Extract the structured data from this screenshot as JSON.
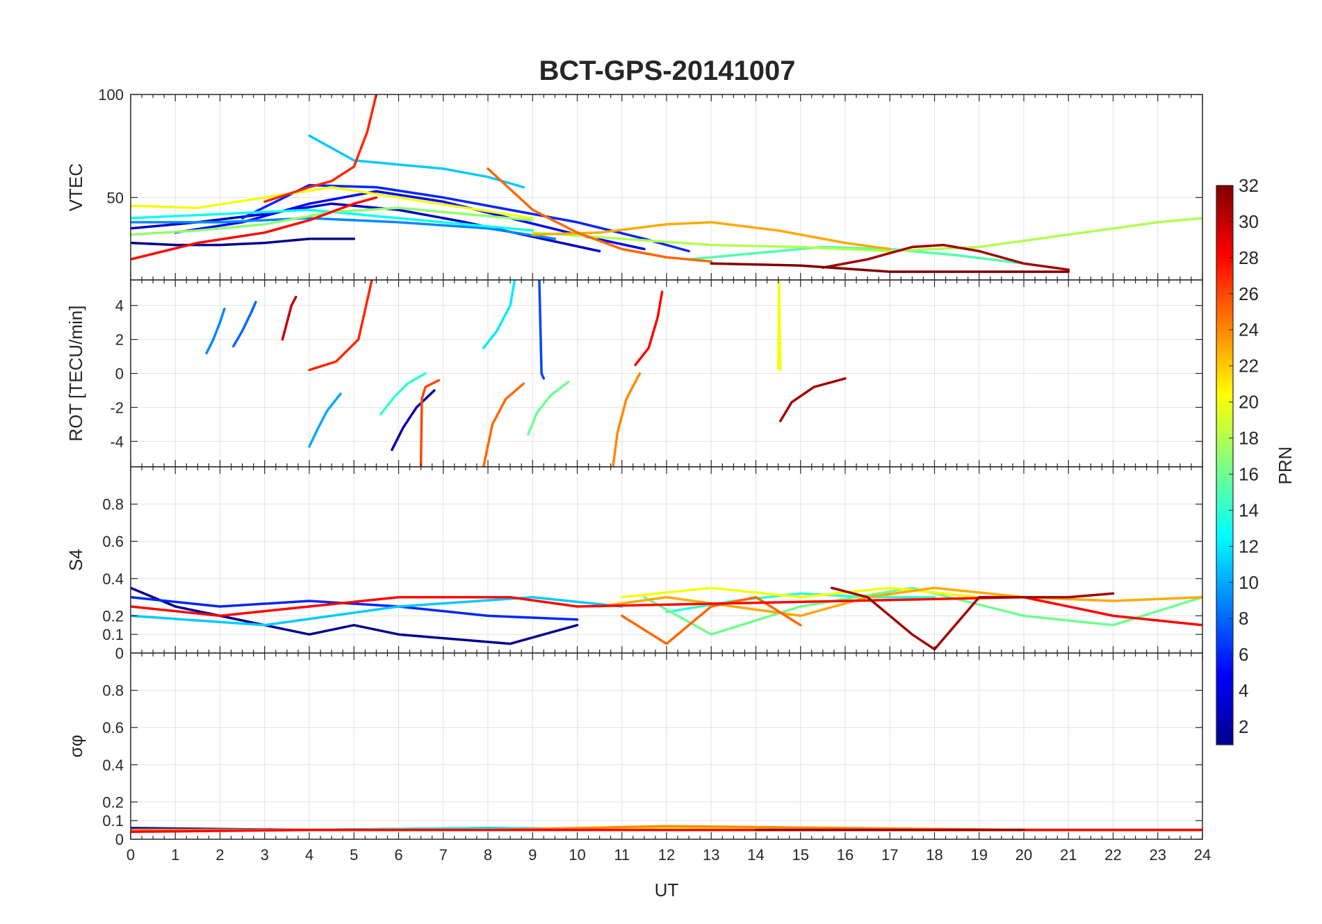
{
  "chart_data": {
    "title": "BCT-GPS-20141007",
    "type": "line",
    "shared_x": {
      "label": "UT",
      "range": [
        0,
        24
      ],
      "ticks": [
        0,
        1,
        2,
        3,
        4,
        5,
        6,
        7,
        8,
        9,
        10,
        11,
        12,
        13,
        14,
        15,
        16,
        17,
        18,
        19,
        20,
        21,
        22,
        23,
        24
      ]
    },
    "grid": true,
    "colorbar": {
      "label": "PRN",
      "range": [
        1,
        32
      ],
      "ticks": [
        2,
        4,
        6,
        8,
        10,
        12,
        14,
        16,
        18,
        20,
        22,
        24,
        26,
        28,
        30,
        32
      ],
      "colormap": [
        "#00008f",
        "#0000ff",
        "#0080ff",
        "#00ffff",
        "#80ff80",
        "#ffff00",
        "#ff8000",
        "#ff0000",
        "#800000"
      ],
      "placement": "right"
    },
    "panels": [
      {
        "id": "vtec",
        "ylabel": "VTEC",
        "ylim": [
          10,
          100
        ],
        "yticks": [
          50,
          100
        ],
        "series": [
          {
            "prn": 1,
            "x": [
              0.0,
              1.0,
              2.0,
              3.0,
              4.0,
              5.0
            ],
            "y": [
              28,
              27,
              27,
              28,
              30,
              30
            ]
          },
          {
            "prn": 3,
            "x": [
              0.0,
              1.5,
              3.0,
              4.5,
              6.0,
              7.5,
              9.0,
              10.5
            ],
            "y": [
              35,
              38,
              42,
              47,
              44,
              38,
              31,
              24
            ]
          },
          {
            "prn": 5,
            "x": [
              1.0,
              2.5,
              4.0,
              5.5,
              7.0,
              8.5,
              10.0,
              11.5
            ],
            "y": [
              33,
              38,
              47,
              53,
              48,
              40,
              32,
              25
            ]
          },
          {
            "prn": 6,
            "x": [
              2.5,
              4.0,
              5.5,
              7.0,
              8.5,
              10.0,
              11.5,
              12.5
            ],
            "y": [
              40,
              56,
              55,
              50,
              44,
              38,
              30,
              24
            ]
          },
          {
            "prn": 9,
            "x": [
              0.0,
              2.0,
              4.0,
              6.0,
              8.0,
              9.5
            ],
            "y": [
              38,
              38,
              40,
              38,
              35,
              30
            ]
          },
          {
            "prn": 11,
            "x": [
              4.0,
              5.0,
              6.0,
              7.0,
              8.0,
              8.8
            ],
            "y": [
              80,
              68,
              66,
              64,
              60,
              55
            ]
          },
          {
            "prn": 13,
            "x": [
              0.0,
              2.0,
              4.0,
              6.0,
              8.0,
              9.0
            ],
            "y": [
              40,
              42,
              44,
              40,
              36,
              34
            ]
          },
          {
            "prn": 15,
            "x": [
              12.5,
              14.0,
              15.5,
              17.0,
              18.5,
              20.0
            ],
            "y": [
              20,
              23,
              26,
              25,
              22,
              18
            ]
          },
          {
            "prn": 17,
            "x": [
              0.0,
              1.5,
              3.0,
              4.5,
              6.0,
              7.5,
              9.0
            ],
            "y": [
              32,
              34,
              37,
              43,
              45,
              42,
              39
            ]
          },
          {
            "prn": 18,
            "x": [
              9.0,
              11.0,
              13.0,
              15.0,
              17.0,
              19.0,
              21.0,
              23.0,
              24.0
            ],
            "y": [
              33,
              30,
              27,
              26,
              24,
              26,
              32,
              38,
              40
            ]
          },
          {
            "prn": 20,
            "x": [
              0.0,
              1.5,
              3.0,
              4.5,
              6.0,
              7.5,
              9.0
            ],
            "y": [
              46,
              45,
              50,
              55,
              50,
              45,
              40
            ]
          },
          {
            "prn": 23,
            "x": [
              9.0,
              10.5,
              12.0,
              13.0,
              14.5,
              16.0,
              17.0
            ],
            "y": [
              32,
              33,
              37,
              38,
              34,
              28,
              25
            ]
          },
          {
            "prn": 25,
            "x": [
              8.0,
              9.0,
              10.0,
              11.0,
              12.0,
              13.0
            ],
            "y": [
              64,
              44,
              33,
              25,
              21,
              19
            ]
          },
          {
            "prn": 27,
            "x": [
              3.0,
              4.0,
              4.5,
              5.0,
              5.3,
              5.5
            ],
            "y": [
              48,
              55,
              58,
              65,
              82,
              100
            ]
          },
          {
            "prn": 28,
            "x": [
              0.0,
              1.5,
              3.0,
              4.0,
              5.0,
              5.5
            ],
            "y": [
              20,
              28,
              33,
              39,
              47,
              50
            ]
          },
          {
            "prn": 31,
            "x": [
              15.5,
              16.5,
              17.5,
              18.2,
              19.0,
              20.0,
              21.0
            ],
            "y": [
              16,
              20,
              26,
              27,
              24,
              18,
              15
            ]
          },
          {
            "prn": 32,
            "x": [
              13.0,
              15.0,
              17.0,
              19.0,
              21.0
            ],
            "y": [
              18,
              17,
              14,
              14,
              14
            ]
          }
        ]
      },
      {
        "id": "rot",
        "ylabel": "ROT [TECU/min]",
        "ylim": [
          -5.5,
          5.5
        ],
        "yticks": [
          -4,
          -2,
          0,
          2,
          4
        ],
        "series": [
          {
            "prn": 2,
            "x": [
              5.85,
              6.1,
              6.4,
              6.8
            ],
            "y": [
              -4.5,
              -3.2,
              -2.0,
              -1.0
            ]
          },
          {
            "prn": 7,
            "x": [
              9.15,
              9.2,
              9.25
            ],
            "y": [
              5.5,
              0,
              -0.3
            ]
          },
          {
            "prn": 8,
            "x": [
              2.3,
              2.5,
              2.7,
              2.8
            ],
            "y": [
              1.6,
              2.5,
              3.6,
              4.2
            ]
          },
          {
            "prn": 9,
            "x": [
              1.7,
              1.85,
              2.0,
              2.1
            ],
            "y": [
              1.2,
              2.0,
              3.0,
              3.8
            ]
          },
          {
            "prn": 10,
            "x": [
              4.0,
              4.2,
              4.4,
              4.7
            ],
            "y": [
              -4.3,
              -3.2,
              -2.2,
              -1.2
            ]
          },
          {
            "prn": 12,
            "x": [
              7.9,
              8.2,
              8.5,
              8.6
            ],
            "y": [
              1.5,
              2.5,
              4.0,
              5.5
            ]
          },
          {
            "prn": 14,
            "x": [
              5.6,
              5.9,
              6.2,
              6.6
            ],
            "y": [
              -2.4,
              -1.4,
              -0.6,
              0
            ]
          },
          {
            "prn": 16,
            "x": [
              8.9,
              9.1,
              9.4,
              9.8
            ],
            "y": [
              -3.6,
              -2.3,
              -1.3,
              -0.5
            ]
          },
          {
            "prn": 20,
            "x": [
              14.5,
              14.52,
              14.55
            ],
            "y": [
              0.3,
              5.5,
              0.2
            ]
          },
          {
            "prn": 24,
            "x": [
              10.8,
              10.9,
              11.1,
              11.4
            ],
            "y": [
              -5.5,
              -3.5,
              -1.5,
              0
            ]
          },
          {
            "prn": 25,
            "x": [
              7.9,
              8.1,
              8.4,
              8.8
            ],
            "y": [
              -5.5,
              -3.0,
              -1.5,
              -0.6
            ]
          },
          {
            "prn": 26,
            "x": [
              6.5,
              6.52,
              6.6,
              6.9
            ],
            "y": [
              -5.5,
              -1.5,
              -0.8,
              -0.4
            ]
          },
          {
            "prn": 27,
            "x": [
              4.0,
              4.6,
              5.1,
              5.4
            ],
            "y": [
              0.2,
              0.7,
              2.0,
              5.5
            ]
          },
          {
            "prn": 28,
            "x": [
              11.3,
              11.6,
              11.8,
              11.9
            ],
            "y": [
              0.5,
              1.5,
              3.3,
              4.8
            ]
          },
          {
            "prn": 30,
            "x": [
              3.4,
              3.5,
              3.6,
              3.7
            ],
            "y": [
              2.0,
              3.0,
              4.0,
              4.5
            ]
          },
          {
            "prn": 31,
            "x": [
              14.55,
              14.8,
              15.3,
              16.0
            ],
            "y": [
              -2.8,
              -1.7,
              -0.8,
              -0.3
            ]
          }
        ]
      },
      {
        "id": "s4",
        "ylabel": "S4",
        "ylim": [
          0,
          1
        ],
        "yticks": [
          0,
          0.1,
          0.2,
          0.4,
          0.6,
          0.8
        ],
        "series": [
          {
            "prn": 1,
            "x": [
              0.0,
              1.0,
              2.0,
              4.0,
              5.0,
              6.0,
              7.0,
              8.5,
              10.0
            ],
            "y": [
              0.35,
              0.25,
              0.2,
              0.1,
              0.15,
              0.1,
              0.08,
              0.05,
              0.15
            ]
          },
          {
            "prn": 6,
            "x": [
              0.0,
              2.0,
              4.0,
              6.0,
              8.0,
              10.0
            ],
            "y": [
              0.3,
              0.25,
              0.28,
              0.25,
              0.2,
              0.18
            ]
          },
          {
            "prn": 11,
            "x": [
              0.0,
              3.0,
              6.0,
              9.0,
              11.0
            ],
            "y": [
              0.2,
              0.15,
              0.25,
              0.3,
              0.25
            ]
          },
          {
            "prn": 14,
            "x": [
              12.0,
              13.5,
              15.0,
              16.5,
              18.0
            ],
            "y": [
              0.22,
              0.28,
              0.32,
              0.3,
              0.3
            ]
          },
          {
            "prn": 16,
            "x": [
              11.5,
              13.0,
              15.0,
              17.5,
              20.0,
              22.0,
              24.0
            ],
            "y": [
              0.3,
              0.1,
              0.25,
              0.35,
              0.2,
              0.15,
              0.3
            ]
          },
          {
            "prn": 20,
            "x": [
              11.0,
              13.0,
              15.0,
              17.0,
              19.0
            ],
            "y": [
              0.3,
              0.35,
              0.3,
              0.35,
              0.3
            ]
          },
          {
            "prn": 23,
            "x": [
              10.5,
              12.0,
              13.5,
              15.0,
              16.5,
              18.0,
              20.0,
              22.0,
              24.0
            ],
            "y": [
              0.25,
              0.3,
              0.25,
              0.2,
              0.3,
              0.35,
              0.3,
              0.28,
              0.3
            ]
          },
          {
            "prn": 25,
            "x": [
              11.0,
              12.0,
              13.0,
              14.0,
              15.0
            ],
            "y": [
              0.2,
              0.05,
              0.25,
              0.3,
              0.15
            ]
          },
          {
            "prn": 28,
            "x": [
              0.0,
              2.0,
              4.0,
              6.0,
              8.5,
              10.0,
              20.0,
              22.0,
              24.0
            ],
            "y": [
              0.25,
              0.2,
              0.25,
              0.3,
              0.3,
              0.25,
              0.3,
              0.2,
              0.15
            ]
          },
          {
            "prn": 31,
            "x": [
              15.7,
              16.5,
              17.5,
              18.0,
              19.0,
              21.0,
              22.0
            ],
            "y": [
              0.35,
              0.3,
              0.1,
              0.02,
              0.3,
              0.3,
              0.32
            ]
          }
        ]
      },
      {
        "id": "sigma_phi",
        "ylabel": "σφ",
        "ylim": [
          0,
          1
        ],
        "yticks": [
          0,
          0.1,
          0.2,
          0.4,
          0.6,
          0.8
        ],
        "series": [
          {
            "prn": 3,
            "x": [
              0.0,
              4.0,
              8.0,
              12.0,
              16.0,
              20.0,
              24.0
            ],
            "y": [
              0.06,
              0.05,
              0.06,
              0.05,
              0.05,
              0.05,
              0.05
            ]
          },
          {
            "prn": 12,
            "x": [
              0.0,
              4.0,
              8.0,
              12.0,
              16.0,
              20.0,
              24.0
            ],
            "y": [
              0.05,
              0.05,
              0.06,
              0.05,
              0.05,
              0.05,
              0.05
            ]
          },
          {
            "prn": 20,
            "x": [
              0.0,
              4.0,
              8.0,
              12.0,
              16.0,
              20.0,
              24.0
            ],
            "y": [
              0.05,
              0.05,
              0.05,
              0.06,
              0.05,
              0.05,
              0.05
            ]
          },
          {
            "prn": 24,
            "x": [
              0.0,
              4.0,
              8.0,
              12.0,
              16.0,
              20.0,
              24.0
            ],
            "y": [
              0.05,
              0.05,
              0.05,
              0.07,
              0.06,
              0.05,
              0.05
            ]
          },
          {
            "prn": 28,
            "x": [
              0.0,
              4.0,
              8.0,
              12.0,
              16.0,
              20.0,
              24.0
            ],
            "y": [
              0.04,
              0.05,
              0.05,
              0.05,
              0.05,
              0.05,
              0.05
            ]
          },
          {
            "prn": 31,
            "x": [
              14.0,
              16.0,
              18.0,
              20.0
            ],
            "y": [
              0.05,
              0.05,
              0.05,
              0.05
            ]
          }
        ]
      }
    ]
  }
}
